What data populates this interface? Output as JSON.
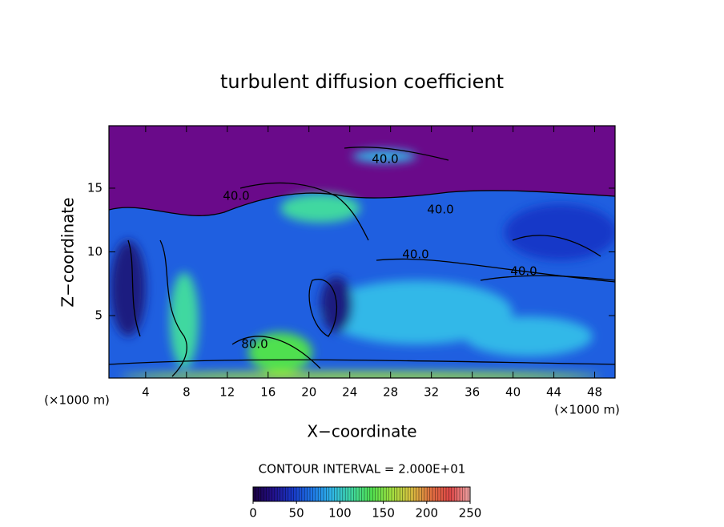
{
  "chart_data": {
    "type": "contour",
    "title": "turbulent diffusion coefficient",
    "x_label": "X−coordinate",
    "y_label": "Z−coordinate",
    "x_unit": "(×1000 m)",
    "y_unit": "(×1000 m)",
    "xlim": [
      0.4,
      50
    ],
    "ylim": [
      0.1,
      19.9
    ],
    "xticks": [
      4,
      8,
      12,
      16,
      20,
      24,
      28,
      32,
      36,
      40,
      44,
      48
    ],
    "yticks": [
      5,
      10,
      15
    ],
    "contour_interval": "CONTOUR INTERVAL = 2.000E+01",
    "contour_labels": [
      "40.0",
      "40.0",
      "40.0",
      "40.0",
      "40.0",
      "80.0"
    ],
    "colorbar": {
      "lim": [
        0,
        250
      ],
      "ticks": [
        0,
        50,
        100,
        150,
        200,
        250
      ],
      "colors": [
        "#1a0040",
        "#22108a",
        "#1838c8",
        "#1e78e8",
        "#30b8e8",
        "#40d8a0",
        "#50e050",
        "#a0e040",
        "#d8c040",
        "#e07040",
        "#e04848",
        "#f0a8a8"
      ]
    }
  }
}
